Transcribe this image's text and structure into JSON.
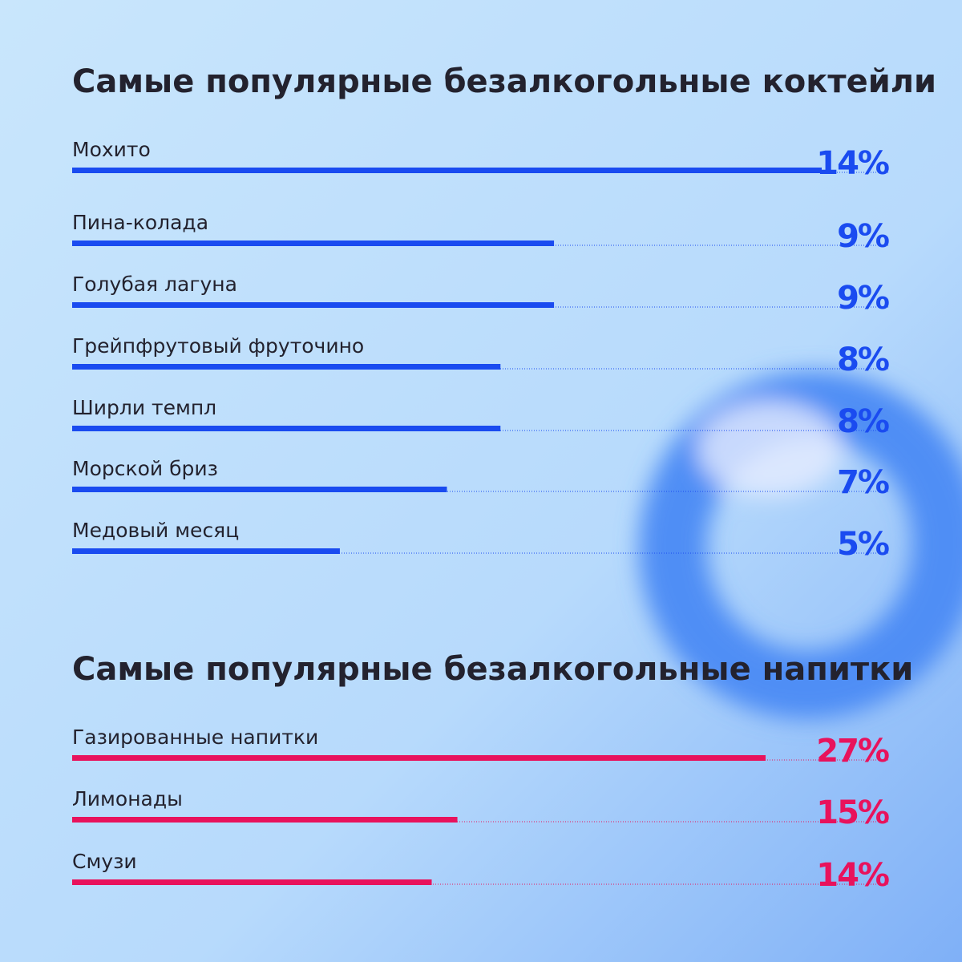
{
  "chart_data": [
    {
      "type": "bar",
      "orientation": "horizontal",
      "title": "Самые популярные безалкогольные коктейли",
      "categories": [
        "Мохито",
        "Пина-колада",
        "Голубая лагуна",
        "Грейпфрутовый фруточино",
        "Ширли темпл",
        "Морской бриз",
        "Медовый месяц"
      ],
      "values": [
        14,
        9,
        9,
        8,
        8,
        7,
        5
      ],
      "value_labels": [
        "14%",
        "9%",
        "9%",
        "8%",
        "8%",
        "7%",
        "5%"
      ],
      "color": "#1a4bf0"
    },
    {
      "type": "bar",
      "orientation": "horizontal",
      "title": "Самые популярные безалкогольные напитки",
      "categories": [
        "Газированные напитки",
        "Лимонады",
        "Смузи"
      ],
      "values": [
        27,
        15,
        14
      ],
      "value_labels": [
        "27%",
        "15%",
        "14%"
      ],
      "color": "#e8125c"
    }
  ]
}
